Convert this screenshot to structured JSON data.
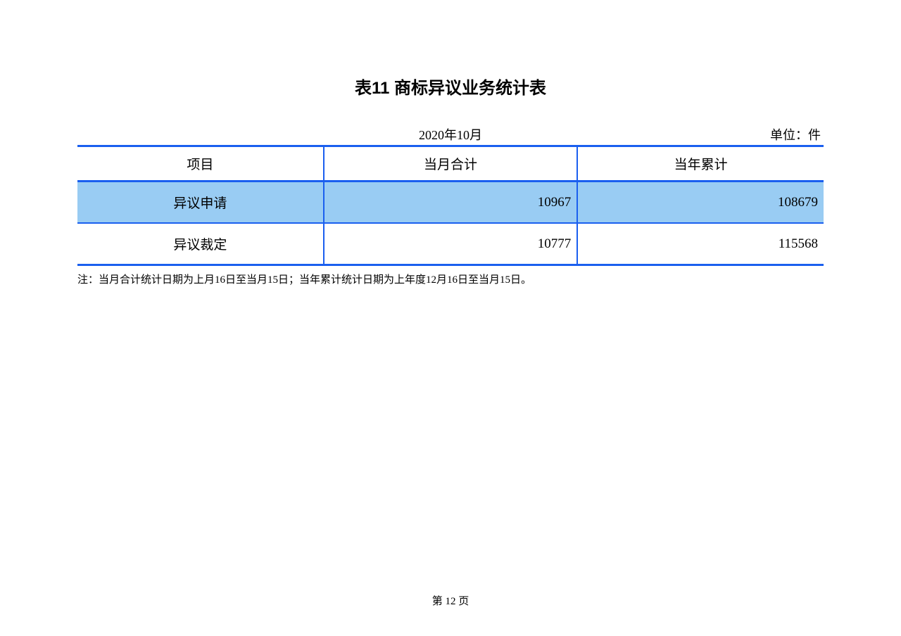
{
  "title": "表11 商标异议业务统计表",
  "date_label": "2020年10月",
  "unit_label": "单位：件",
  "table": {
    "columns": [
      "项目",
      "当月合计",
      "当年累计"
    ],
    "rows": [
      {
        "item": "异议申请",
        "month": "10967",
        "year": "108679",
        "highlight": true
      },
      {
        "item": "异议裁定",
        "month": "10777",
        "year": "115568",
        "highlight": false
      }
    ],
    "border_color": "#1a5fef",
    "highlight_bg": "#99ccf3",
    "background_color": "#ffffff",
    "text_color": "#000000"
  },
  "footnote": "注：当月合计统计日期为上月16日至当月15日；当年累计统计日期为上年度12月16日至当月15日。",
  "page_number": "第 12 页"
}
